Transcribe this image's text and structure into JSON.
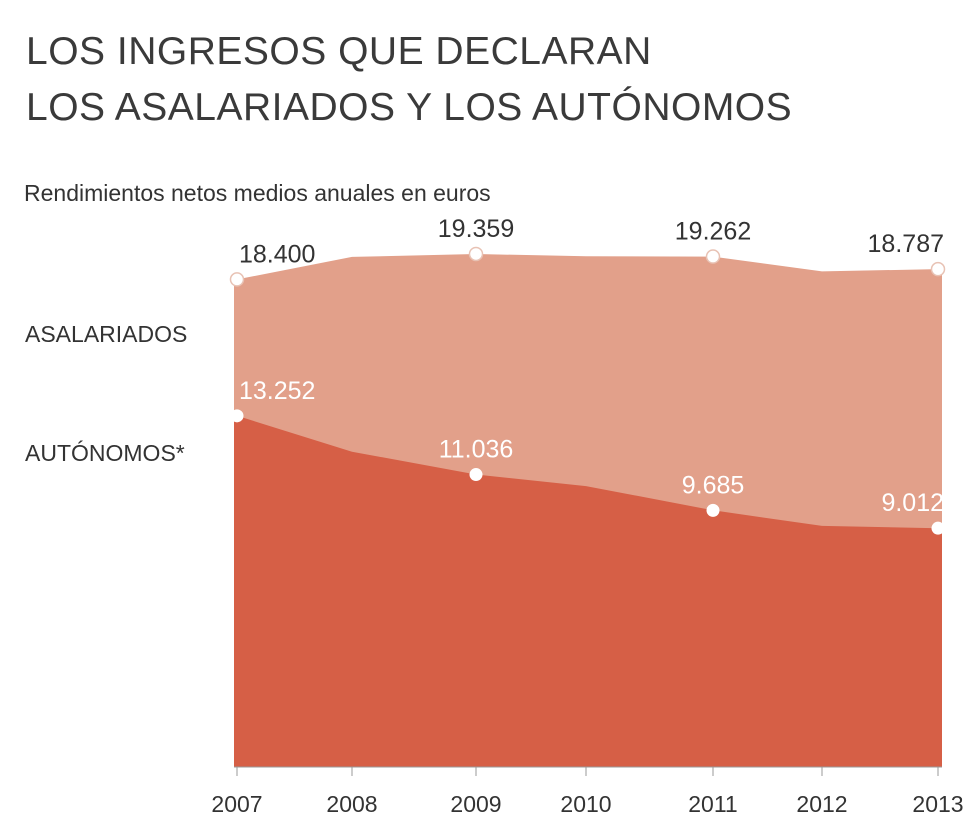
{
  "header": {
    "title_line1": "LOS INGRESOS QUE DECLARAN",
    "title_line2": "LOS ASALARIADOS Y LOS AUTÓNOMOS",
    "subtitle": "Rendimientos netos medios anuales en euros"
  },
  "colors": {
    "asalariados": "#e2a08a",
    "autonomos": "#d65f46",
    "marker": "#ffffff",
    "axis": "#999999"
  },
  "chart_data": {
    "type": "area",
    "title": "LOS INGRESOS QUE DECLARAN LOS ASALARIADOS Y LOS AUTÓNOMOS",
    "subtitle": "Rendimientos netos medios anuales en euros",
    "xlabel": "",
    "ylabel": "Rendimientos netos medios anuales en euros",
    "categories": [
      "2007",
      "2008",
      "2009",
      "2010",
      "2011",
      "2012",
      "2013"
    ],
    "ylim": [
      0,
      20000
    ],
    "series": [
      {
        "name": "ASALARIADOS",
        "values": [
          18400,
          19250,
          19359,
          19270,
          19262,
          18700,
          18787
        ],
        "labels": [
          "18.400",
          "",
          "19.359",
          "",
          "19.262",
          "",
          "18.787"
        ]
      },
      {
        "name": "AUTÓNOMOS*",
        "values": [
          13252,
          11900,
          11036,
          10600,
          9685,
          9100,
          9012
        ],
        "labels": [
          "13.252",
          "",
          "11.036",
          "",
          "9.685",
          "",
          "9.012"
        ]
      }
    ]
  }
}
